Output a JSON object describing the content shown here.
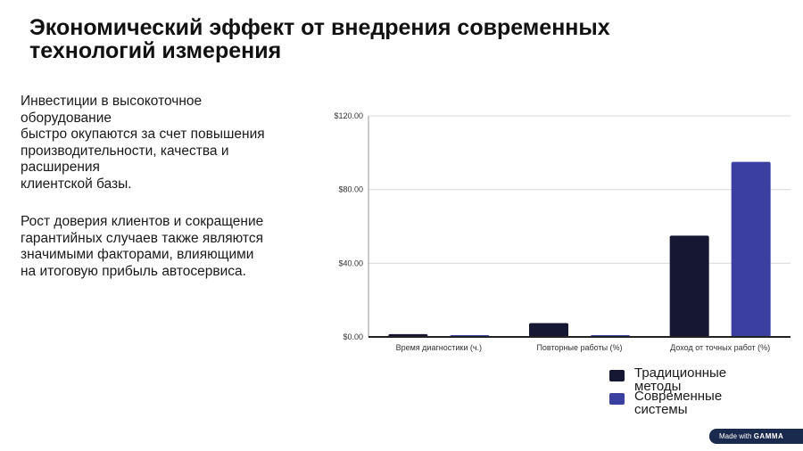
{
  "title": "Экономический эффект от внедрения современных технологий измерения",
  "paragraphs": [
    "Инвестиции в высокоточное\nоборудование\nбыстро окупаются за счет повышения\nпроизводительности, качества и\nрасширения\n клиентской базы.",
    "Рост доверия клиентов и сокращение\nгарантийных  случаев также являются\nзначимыми факторами, влияющими\n на итоговую прибыль автосервиса."
  ],
  "badge": {
    "prefix": "Made with",
    "brand": "GAMMA"
  },
  "chart_data": {
    "type": "bar",
    "categories": [
      "Время диагностики (ч.)",
      "Повторные работы (%)",
      "Доход от точных работ (%)"
    ],
    "series": [
      {
        "name": "Традиционные методы",
        "values": [
          1.5,
          7.5,
          55
        ],
        "color": "#161833"
      },
      {
        "name": "Современные системы",
        "values": [
          0.3,
          0.5,
          95
        ],
        "color": "#3a3fa0"
      }
    ],
    "ylim": [
      0,
      120
    ],
    "yticks": [
      0,
      40,
      80,
      120
    ],
    "ytick_labels": [
      "$0.00",
      "$40.00",
      "$80.00",
      "$120.00"
    ],
    "grid": true,
    "legend": "bottom-right"
  }
}
